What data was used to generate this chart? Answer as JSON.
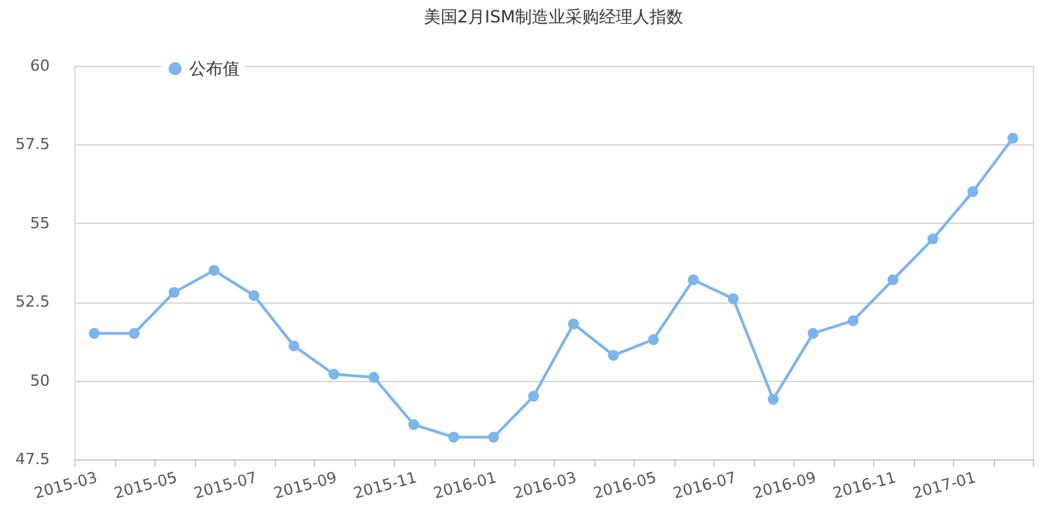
{
  "chart_data": {
    "type": "line",
    "title": "美国2月ISM制造业采购经理人指数",
    "categories": [
      "2015-03",
      null,
      "2015-05",
      null,
      "2015-07",
      null,
      "2015-09",
      null,
      "2015-11",
      null,
      "2016-01",
      null,
      "2016-03",
      null,
      "2016-05",
      null,
      "2016-07",
      null,
      "2016-09",
      null,
      "2016-11",
      null,
      "2017-01",
      null
    ],
    "series": [
      {
        "name": "公布值",
        "color": "#7cb5ec",
        "values": [
          51.5,
          51.5,
          52.8,
          53.5,
          52.7,
          51.1,
          50.2,
          50.1,
          48.6,
          48.2,
          48.2,
          49.5,
          51.8,
          50.8,
          51.3,
          53.2,
          52.6,
          49.4,
          51.5,
          51.9,
          53.2,
          54.5,
          56.0,
          57.7
        ]
      }
    ],
    "ylim": [
      47.5,
      60
    ],
    "yticks": [
      47.5,
      50,
      52.5,
      55,
      57.5,
      60
    ],
    "grid": "y",
    "legend": "top left",
    "marker": "circle",
    "line_style": "solid"
  }
}
